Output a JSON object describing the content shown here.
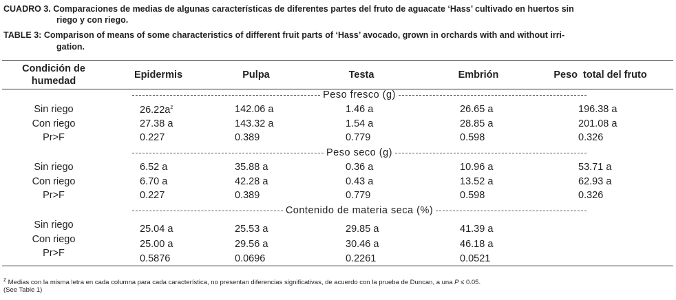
{
  "caption_es": {
    "label": "CUADRO 3.",
    "text": "Comparaciones de medias de algunas características de diferentes partes del fruto de aguacate ‘Hass’ cultivado en huertos sin",
    "text_cont": "riego y con riego."
  },
  "caption_en": {
    "label": "TABLE 3:",
    "text": "Comparison of means of some characteristics of different fruit parts of ‘Hass’ avocado, grown in orchards with and without irri-",
    "text_cont": "gation."
  },
  "footnote_mark": "z",
  "table": {
    "header": {
      "row_label": [
        "Condición de",
        "humedad"
      ],
      "columns": [
        "Epidermis",
        "Pulpa",
        "Testa",
        "Embrión",
        "Peso  total del fruto"
      ]
    },
    "sections": [
      {
        "title": "Peso fresco (g)",
        "rows": [
          {
            "label": "Sin riego",
            "values": [
              "26.22a",
              "142.06 a",
              "1.46 a",
              "26.65 a",
              "196.38 a"
            ]
          },
          {
            "label": "Con riego",
            "values": [
              "27.38 a",
              "143.32 a",
              "1.54 a",
              "28.85 a",
              "201.08 a"
            ]
          },
          {
            "label": "Pr>F",
            "values": [
              "0.227",
              "0.389",
              "0.779",
              "0.598",
              "0.326"
            ]
          }
        ]
      },
      {
        "title": "Peso seco (g)",
        "rows": [
          {
            "label": "Sin riego",
            "values": [
              "6.52 a",
              "35.88 a",
              "0.36 a",
              "10.96 a",
              "53.71 a"
            ]
          },
          {
            "label": "Con riego",
            "values": [
              "6.70 a",
              "42.28 a",
              "0.43 a",
              "13.52 a",
              "62.93 a"
            ]
          },
          {
            "label": "Pr>F",
            "values": [
              "0.227",
              "0.389",
              "0.779",
              "0.598",
              "0.326"
            ]
          }
        ]
      },
      {
        "title": "Contenido de materia seca (%)",
        "rows": [
          {
            "label": "Sin riego",
            "values": [
              "25.04 a",
              "25.53 a",
              "29.85 a",
              "41.39 a"
            ]
          },
          {
            "label": "Con riego",
            "values": [
              "25.00 a",
              "29.56 a",
              "30.46 a",
              "46.18 a"
            ]
          },
          {
            "label": "Pr>F",
            "values": [
              "0.5876",
              "0.0696",
              "0.2261",
              "0.0521"
            ]
          }
        ]
      }
    ]
  },
  "footnote": {
    "text": "Medias con la misma letra en cada columna para cada característica, no presentan diferencias significativas, de acuerdo con la prueba de Duncan, a una",
    "italic": "P",
    "text_after": "≤ 0.05.",
    "see": "(See Table 1)"
  }
}
